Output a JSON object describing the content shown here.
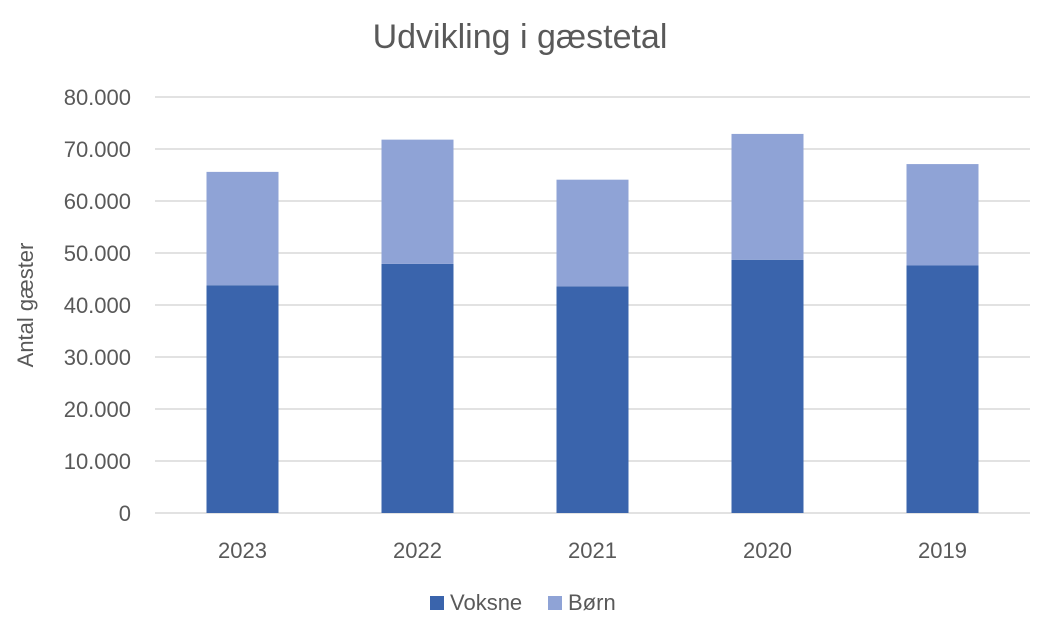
{
  "chart_data": {
    "type": "bar",
    "stacked": true,
    "title": "Udvikling i gæstetal",
    "xlabel": "",
    "ylabel": "Antal gæster",
    "categories": [
      "2023",
      "2022",
      "2021",
      "2020",
      "2019"
    ],
    "series": [
      {
        "name": "Voksne",
        "values": [
          43800,
          47900,
          43600,
          48700,
          47600
        ],
        "color": "#3a64ac"
      },
      {
        "name": "Børn",
        "values": [
          21800,
          23900,
          20500,
          24200,
          19500
        ],
        "color": "#8fa3d6"
      }
    ],
    "ylim": [
      0,
      80000
    ],
    "y_ticks": [
      0,
      10000,
      20000,
      30000,
      40000,
      50000,
      60000,
      70000,
      80000
    ],
    "y_tick_labels": [
      "0",
      "10.000",
      "20.000",
      "30.000",
      "40.000",
      "50.000",
      "60.000",
      "70.000",
      "80.000"
    ],
    "grid": true,
    "legend_position": "bottom"
  }
}
